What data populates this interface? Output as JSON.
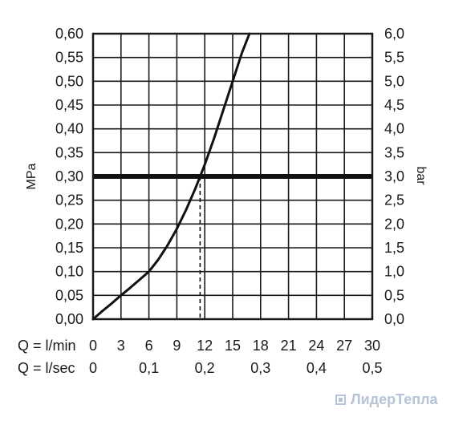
{
  "chart_data": {
    "type": "line",
    "y_left": {
      "label": "MPa",
      "range": [
        0,
        0.6
      ],
      "ticks": [
        "0,00",
        "0,05",
        "0,10",
        "0,15",
        "0,20",
        "0,25",
        "0,30",
        "0,35",
        "0,40",
        "0,45",
        "0,50",
        "0,55",
        "0,60"
      ]
    },
    "y_right": {
      "label": "bar",
      "range": [
        0,
        6
      ],
      "ticks": [
        "0,0",
        "0,5",
        "1,0",
        "1,5",
        "2,0",
        "2,5",
        "3,0",
        "3,5",
        "4,0",
        "4,5",
        "5,0",
        "5,5",
        "6,0"
      ]
    },
    "x_primary": {
      "label": "Q = l/min",
      "range": [
        0,
        30
      ],
      "ticks": [
        "0",
        "3",
        "6",
        "9",
        "12",
        "15",
        "18",
        "21",
        "24",
        "27",
        "30"
      ]
    },
    "x_secondary": {
      "label": "Q = l/sec",
      "ticks": [
        {
          "text": "0",
          "lpm": 0
        },
        {
          "text": "0,1",
          "lpm": 6
        },
        {
          "text": "0,2",
          "lpm": 12
        },
        {
          "text": "0,3",
          "lpm": 18
        },
        {
          "text": "0,4",
          "lpm": 24
        },
        {
          "text": "0,5",
          "lpm": 30
        }
      ]
    },
    "grid": true,
    "series": [
      {
        "x": [
          0,
          1,
          2,
          3,
          4,
          5,
          6,
          7,
          8,
          9,
          10,
          11,
          11.5,
          12,
          13,
          14,
          15,
          16,
          16.8
        ],
        "y": [
          0,
          0.017,
          0.033,
          0.05,
          0.066,
          0.083,
          0.1,
          0.125,
          0.155,
          0.19,
          0.23,
          0.275,
          0.3,
          0.325,
          0.38,
          0.44,
          0.5,
          0.56,
          0.6
        ]
      }
    ],
    "reference_line": {
      "y": 0.3
    },
    "marker": {
      "x": 11.5,
      "y": 0.3,
      "style": "dashed"
    }
  },
  "watermark": {
    "text": "ЛидерТепла"
  }
}
